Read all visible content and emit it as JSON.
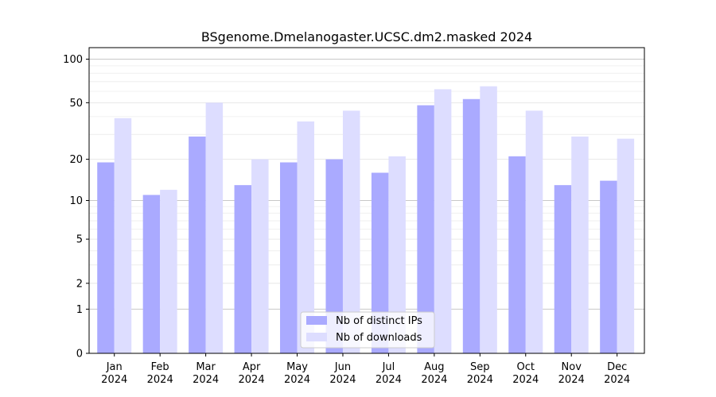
{
  "chart_data": {
    "type": "bar",
    "title": "BSgenome.Dmelanogaster.UCSC.dm2.masked 2024",
    "xlabel": "",
    "ylabel": "",
    "categories": [
      [
        "Jan",
        "2024"
      ],
      [
        "Feb",
        "2024"
      ],
      [
        "Mar",
        "2024"
      ],
      [
        "Apr",
        "2024"
      ],
      [
        "May",
        "2024"
      ],
      [
        "Jun",
        "2024"
      ],
      [
        "Jul",
        "2024"
      ],
      [
        "Aug",
        "2024"
      ],
      [
        "Sep",
        "2024"
      ],
      [
        "Oct",
        "2024"
      ],
      [
        "Nov",
        "2024"
      ],
      [
        "Dec",
        "2024"
      ]
    ],
    "series": [
      {
        "name": "Nb of distinct IPs",
        "color": "#aaaaff",
        "values": [
          19,
          11,
          29,
          13,
          19,
          20,
          16,
          48,
          53,
          21,
          13,
          14
        ]
      },
      {
        "name": "Nb of downloads",
        "color": "#ddddff",
        "values": [
          39,
          12,
          50,
          20,
          37,
          44,
          21,
          62,
          65,
          44,
          29,
          28
        ]
      }
    ],
    "yscale": "log(1+y)",
    "ylim": [
      0,
      120
    ],
    "yticks": [
      0,
      1,
      2,
      5,
      10,
      20,
      50,
      100
    ],
    "ytick_labels": [
      "0",
      "1",
      "2",
      "5",
      "10",
      "20",
      "50",
      "100"
    ],
    "grid": true,
    "legend_position": "lower-center"
  }
}
